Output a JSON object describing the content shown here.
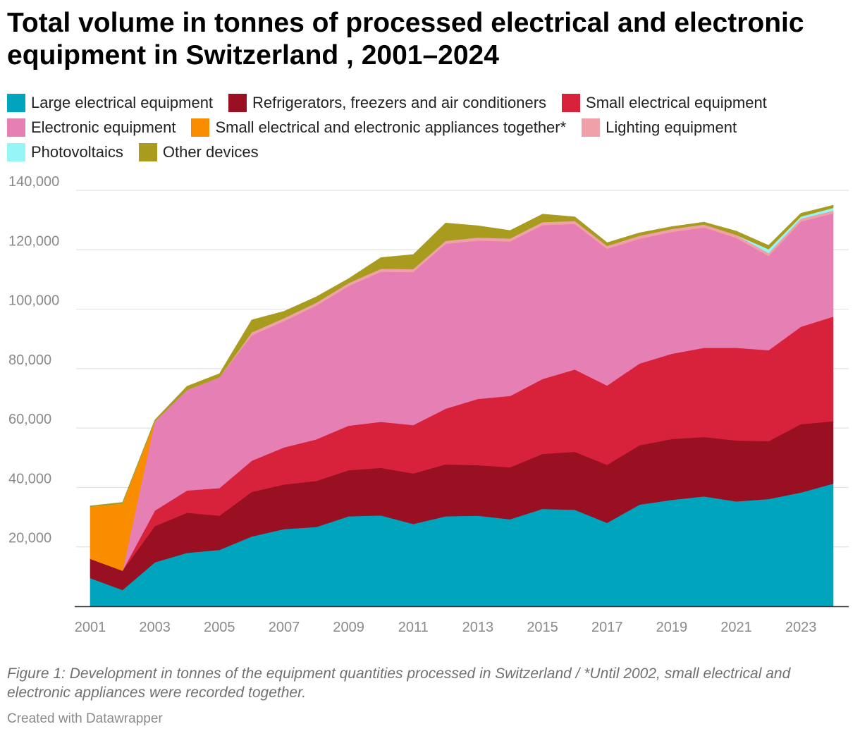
{
  "title": "Total volume in tonnes of processed electrical and electronic equipment in Switzerland , 2001–2024",
  "note": "Figure 1: Development in tonnes of the equipment quantities processed in Switzerland / *Until 2002, small electrical and electronic appliances were recorded together.",
  "credit": "Created with Datawrapper",
  "chart_data": {
    "type": "area",
    "stacked": true,
    "x": [
      2001,
      2002,
      2003,
      2004,
      2005,
      2006,
      2007,
      2008,
      2009,
      2010,
      2011,
      2012,
      2013,
      2014,
      2015,
      2016,
      2017,
      2018,
      2019,
      2020,
      2021,
      2022,
      2023,
      2024
    ],
    "x_tick_labels": [
      "2001",
      "2003",
      "2005",
      "2007",
      "2009",
      "2011",
      "2013",
      "2015",
      "2017",
      "2019",
      "2021",
      "2023"
    ],
    "y_tick_labels": [
      "20,000",
      "40,000",
      "60,000",
      "80,000",
      "100,000",
      "120,000",
      "140,000"
    ],
    "ylim": [
      0,
      140000
    ],
    "grid": true,
    "legend_position": "top",
    "series": [
      {
        "name": "Large electrical equipment",
        "color": "#00a4bd",
        "values": [
          9500,
          5500,
          14800,
          18000,
          19000,
          23500,
          26000,
          26700,
          30300,
          30600,
          27700,
          30300,
          30500,
          29300,
          32800,
          32500,
          28100,
          34200,
          35800,
          37000,
          35300,
          36100,
          38300,
          41300
        ]
      },
      {
        "name": "Refrigerators, freezers and air conditioners",
        "color": "#991022",
        "values": [
          6500,
          6500,
          12200,
          13500,
          11500,
          15000,
          15000,
          15500,
          15500,
          16000,
          17000,
          17500,
          17000,
          17500,
          18500,
          19500,
          19500,
          20000,
          20500,
          20000,
          20500,
          19500,
          23000,
          21000
        ]
      },
      {
        "name": "Small electrical equipment",
        "color": "#d8223c",
        "values": [
          0,
          0,
          5200,
          7500,
          9300,
          10500,
          12500,
          14000,
          15000,
          15500,
          16300,
          18700,
          22300,
          24000,
          25200,
          27700,
          26700,
          27500,
          28700,
          30000,
          31200,
          30600,
          32800,
          35200
        ]
      },
      {
        "name": "Electronic equipment",
        "color": "#e67fb4",
        "values": [
          0,
          0,
          30000,
          33800,
          37300,
          42200,
          42500,
          45000,
          47000,
          50500,
          51500,
          55500,
          53300,
          52000,
          51800,
          49000,
          46000,
          42000,
          41000,
          40500,
          37000,
          31700,
          35400,
          34700
        ]
      },
      {
        "name": "Small electrical and electronic appliances together*",
        "color": "#fa8c00",
        "values": [
          17500,
          22500,
          0,
          0,
          0,
          0,
          0,
          0,
          0,
          0,
          0,
          0,
          0,
          0,
          0,
          0,
          0,
          0,
          0,
          0,
          0,
          0,
          0,
          0
        ]
      },
      {
        "name": "Lighting equipment",
        "color": "#f0a0a8",
        "values": [
          0,
          0,
          0,
          0,
          0,
          1000,
          1000,
          1000,
          1000,
          1000,
          1000,
          1000,
          1000,
          1000,
          1000,
          1000,
          1000,
          1000,
          1000,
          1000,
          1000,
          1000,
          1000,
          1000
        ]
      },
      {
        "name": "Photovoltaics",
        "color": "#96f5f5",
        "values": [
          0,
          0,
          0,
          0,
          0,
          0,
          0,
          0,
          0,
          0,
          0,
          0,
          0,
          0,
          0,
          0,
          0,
          0,
          0,
          0,
          0,
          1300,
          700,
          900
        ]
      },
      {
        "name": "Other devices",
        "color": "#a89b1e",
        "values": [
          300,
          500,
          500,
          1300,
          1200,
          4200,
          2300,
          2000,
          1500,
          3800,
          4900,
          6000,
          4000,
          2700,
          2700,
          1400,
          1100,
          1000,
          800,
          800,
          1300,
          1300,
          1100,
          900
        ]
      }
    ]
  }
}
